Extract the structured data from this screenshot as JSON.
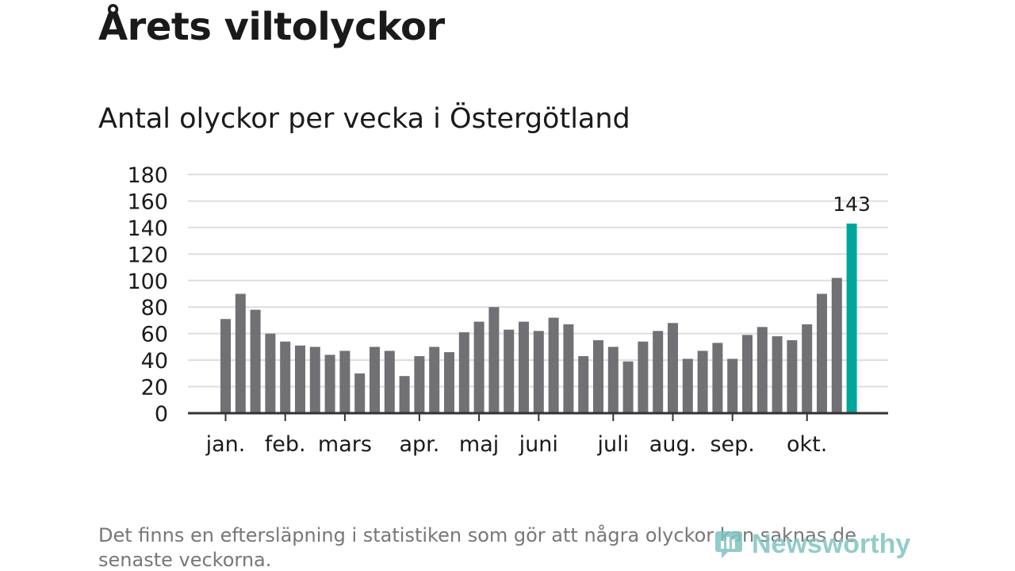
{
  "title": "Årets viltolyckor",
  "subtitle": "Antal olyckor per vecka i Östergötland",
  "footnote": "Det finns en eftersläpning i statistiken som gör att några olyckor kan saknas de senaste veckorna.",
  "logo_text": "Newsworthy",
  "colors": {
    "bar": "#707075",
    "highlight": "#00a69a",
    "grid": "#dddddd",
    "axis": "#333333",
    "text": "#1a1a1a",
    "logo": "#7fc4c0"
  },
  "chart_data": {
    "type": "bar",
    "title": "Antal olyckor per vecka i Östergötland",
    "ylim": [
      0,
      180
    ],
    "yticks": [
      0,
      20,
      40,
      60,
      80,
      100,
      120,
      140,
      160,
      180
    ],
    "grid": true,
    "weeks": [
      1,
      2,
      3,
      4,
      5,
      6,
      7,
      8,
      9,
      10,
      11,
      12,
      13,
      14,
      15,
      16,
      17,
      18,
      19,
      20,
      21,
      22,
      23,
      24,
      25,
      26,
      27,
      28,
      29,
      30,
      31,
      32,
      33,
      34,
      35,
      36,
      37,
      38,
      39,
      40,
      41,
      42,
      43
    ],
    "values": [
      71,
      90,
      78,
      60,
      54,
      51,
      50,
      44,
      47,
      30,
      50,
      47,
      28,
      43,
      50,
      46,
      61,
      69,
      80,
      63,
      69,
      62,
      72,
      67,
      43,
      55,
      50,
      39,
      54,
      62,
      68,
      41,
      47,
      53,
      41,
      59,
      65,
      58,
      55,
      67,
      90,
      102,
      143
    ],
    "highlight_index": 42,
    "highlight_label": "143",
    "month_labels": [
      {
        "label": "jan.",
        "week": 1
      },
      {
        "label": "feb.",
        "week": 5
      },
      {
        "label": "mars",
        "week": 9
      },
      {
        "label": "apr.",
        "week": 14
      },
      {
        "label": "maj",
        "week": 18
      },
      {
        "label": "juni",
        "week": 22
      },
      {
        "label": "juli",
        "week": 27
      },
      {
        "label": "aug.",
        "week": 31
      },
      {
        "label": "sep.",
        "week": 35
      },
      {
        "label": "okt.",
        "week": 40
      }
    ]
  }
}
